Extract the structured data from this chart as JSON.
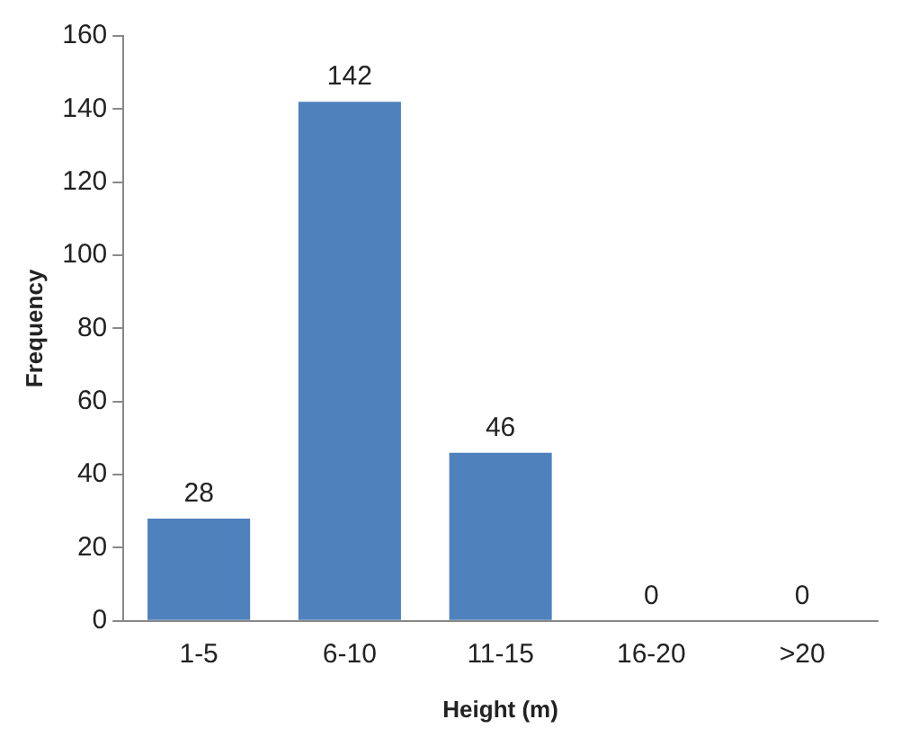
{
  "chart_data": {
    "type": "bar",
    "xlabel": "Height (m)",
    "ylabel": "Frequency",
    "categories": [
      "1-5",
      "6-10",
      "11-15",
      "16-20",
      ">20"
    ],
    "values": [
      28,
      142,
      46,
      0,
      0
    ],
    "color": "#4f81bd",
    "ylim": [
      0,
      160
    ],
    "yticks": [
      0,
      20,
      40,
      60,
      80,
      100,
      120,
      140,
      160
    ],
    "grid": false,
    "legend": false,
    "data_labels": true
  }
}
